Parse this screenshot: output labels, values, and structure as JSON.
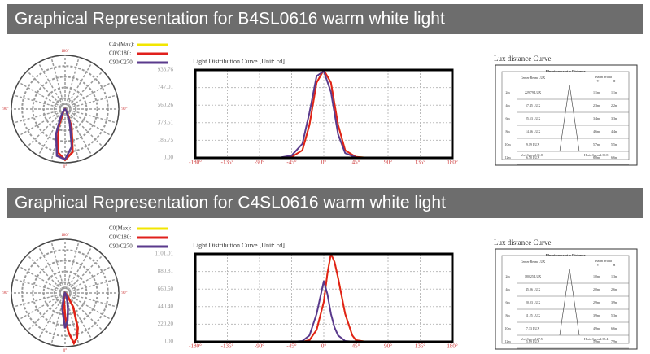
{
  "sections": [
    {
      "title": "Graphical Representation for B4SL0616  warm white  light",
      "polar_labels": [
        "180°",
        "90°",
        "90°",
        "0°"
      ],
      "chart": {
        "type": "line",
        "title": "Light Distribution Curve [Unit: cd]",
        "x": [
          -180,
          -90,
          -60,
          -45,
          -30,
          -20,
          -10,
          0,
          10,
          20,
          30,
          45,
          60,
          90,
          180
        ],
        "series": [
          {
            "name": "C45(Max):",
            "color": "#f2e600",
            "values": [
              0,
              0,
              2,
              10,
              80,
              350,
              800,
              933,
              800,
              350,
              80,
              10,
              2,
              0,
              0
            ]
          },
          {
            "name": "C0/C180:",
            "color": "#e0201c",
            "values": [
              0,
              0,
              2,
              10,
              80,
              350,
              800,
              933,
              800,
              350,
              80,
              10,
              2,
              0,
              0
            ]
          },
          {
            "name": "C90/C270",
            "color": "#5a3a8c",
            "values": [
              0,
              0,
              5,
              25,
              150,
              480,
              870,
              920,
              700,
              250,
              50,
              5,
              1,
              0,
              0
            ]
          }
        ],
        "xlim": [
          -180,
          180
        ],
        "xticks": [
          {
            "value": -180,
            "label": "-180°"
          },
          {
            "value": -135,
            "label": "-135°"
          },
          {
            "value": -90,
            "label": "-90°"
          },
          {
            "value": -45,
            "label": "-45°"
          },
          {
            "value": 0,
            "label": "0°"
          },
          {
            "value": 45,
            "label": "45°"
          },
          {
            "value": 90,
            "label": "90°"
          },
          {
            "value": 135,
            "label": "135°"
          },
          {
            "value": 180,
            "label": "180°"
          }
        ],
        "ylim": [
          0,
          933.76
        ],
        "yticks": [
          {
            "value": 0,
            "label": "0.00"
          },
          186.75,
          373.51,
          560.26,
          747.01,
          933.76
        ],
        "grid": true
      },
      "lux": {
        "title": "Lux distance Curve",
        "heading": "Illuminance at a Distance",
        "col_lux": "Center Beam LUX",
        "col_width": "Beam Width",
        "col_v": "V",
        "col_h": "H",
        "rows": [
          [
            "2m",
            "229.79 LUX",
            "1.1m",
            "1.1m"
          ],
          [
            "4m",
            "57.45 LUX",
            "2.3m",
            "2.2m"
          ],
          [
            "6m",
            "25.53 LUX",
            "3.4m",
            "3.3m"
          ],
          [
            "8m",
            "14.36 LUX",
            "4.6m",
            "4.4m"
          ],
          [
            "10m",
            "9.19 LUX",
            "5.7m",
            "5.5m"
          ],
          [
            "12m",
            "6.38 LUX",
            "6.8m",
            "6.6m"
          ]
        ],
        "vert": "Vert.Spread:31.8",
        "horiz": "Horiz.Spread:30.8"
      }
    },
    {
      "title": "Graphical Representation for C4SL0616  warm white  light",
      "polar_labels": [
        "180°",
        "90°",
        "90°",
        "0°"
      ],
      "chart": {
        "type": "line",
        "title": "Light Distribution Curve [Unit: cd]",
        "x": [
          -180,
          -90,
          -45,
          -30,
          -20,
          -10,
          0,
          5,
          10,
          15,
          20,
          30,
          40,
          45,
          60,
          90,
          180
        ],
        "series": [
          {
            "name": "C0(Max):",
            "color": "#f2e600",
            "values": [
              0,
              0,
              0,
              0,
              20,
              150,
              500,
              850,
              1101,
              1000,
              800,
              350,
              80,
              20,
              0,
              0,
              0
            ]
          },
          {
            "name": "C0/C180:",
            "color": "#e0201c",
            "values": [
              0,
              0,
              0,
              0,
              20,
              150,
              500,
              850,
              1101,
              1000,
              800,
              350,
              80,
              20,
              0,
              0,
              0
            ]
          },
          {
            "name": "C90/C270",
            "color": "#5a3a8c",
            "values": [
              0,
              0,
              0,
              10,
              80,
              350,
              760,
              600,
              350,
              180,
              80,
              10,
              2,
              0,
              0,
              0,
              0
            ]
          }
        ],
        "xlim": [
          -180,
          180
        ],
        "xticks": [
          {
            "value": -180,
            "label": "-180°"
          },
          {
            "value": -135,
            "label": "-135°"
          },
          {
            "value": -90,
            "label": "-90°"
          },
          {
            "value": -45,
            "label": "-45°"
          },
          {
            "value": 0,
            "label": "0°"
          },
          {
            "value": 45,
            "label": "45°"
          },
          {
            "value": 90,
            "label": "90°"
          },
          {
            "value": 135,
            "label": "135°"
          },
          {
            "value": 180,
            "label": "180°"
          }
        ],
        "ylim": [
          0,
          1101.01
        ],
        "yticks": [
          {
            "value": 0,
            "label": "0.00"
          },
          {
            "value": 220.2,
            "label": "220.20"
          },
          {
            "value": 440.4,
            "label": "440.40"
          },
          {
            "value": 660.6,
            "label": "660.60"
          },
          880.81,
          1101.01
        ],
        "grid": true
      },
      "lux": {
        "title": "Lux distance Curve",
        "heading": "Illuminance at a Distance",
        "col_lux": "Center Beam LUX",
        "col_width": "Beam Width",
        "col_v": "V",
        "col_h": "H",
        "rows": [
          [
            "2m",
            "180.25 LUX",
            "1.0m",
            "1.3m"
          ],
          [
            "4m",
            "45.06 LUX",
            "2.0m",
            "2.6m"
          ],
          [
            "6m",
            "20.03 LUX",
            "2.9m",
            "3.9m"
          ],
          [
            "8m",
            "11.25 LUX",
            "3.9m",
            "5.3m"
          ],
          [
            "10m",
            "7.33 LUX",
            "4.9m",
            "6.6m"
          ],
          [
            "12m",
            "5.09 LUX",
            "5.9m",
            "7.9m"
          ]
        ],
        "vert": "Vert.Spread:27.5",
        "horiz": "Horiz.Spread:35.4"
      }
    }
  ]
}
